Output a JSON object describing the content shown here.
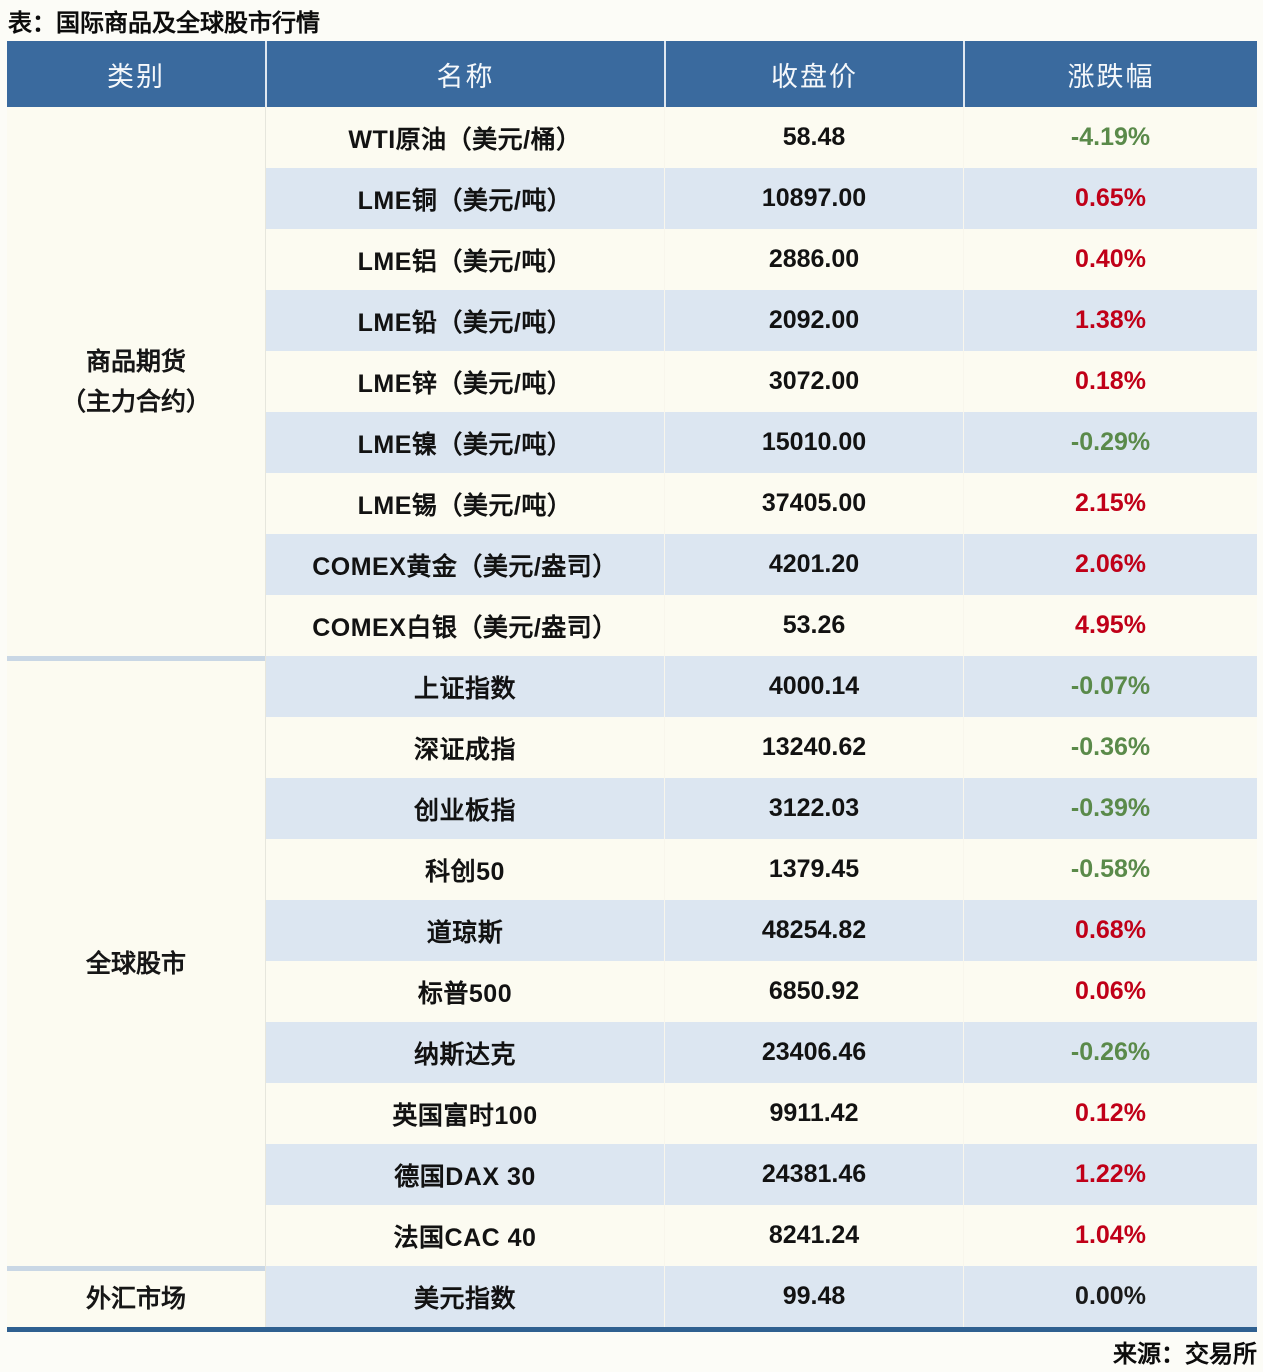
{
  "title": "表：国际商品及全球股市行情",
  "source": "来源：交易所",
  "colors": {
    "up": "#c00018",
    "down": "#5a8a4a",
    "flat": "#1a1a1a",
    "header_bg": "#3a6a9e",
    "stripe_blue": "#dce6f1",
    "stripe_cream": "#fcfbf1",
    "bottom_border": "#2f6090"
  },
  "table": {
    "headers": [
      "类别",
      "名称",
      "收盘价",
      "涨跌幅"
    ],
    "sections": [
      {
        "category_lines": [
          "商品期货",
          "（主力合约）"
        ],
        "rows": [
          {
            "name": "WTI原油（美元/桶）",
            "close": "58.48",
            "change": "-4.19%",
            "direction": "down"
          },
          {
            "name": "LME铜（美元/吨）",
            "close": "10897.00",
            "change": "0.65%",
            "direction": "up"
          },
          {
            "name": "LME铝（美元/吨）",
            "close": "2886.00",
            "change": "0.40%",
            "direction": "up"
          },
          {
            "name": "LME铅（美元/吨）",
            "close": "2092.00",
            "change": "1.38%",
            "direction": "up"
          },
          {
            "name": "LME锌（美元/吨）",
            "close": "3072.00",
            "change": "0.18%",
            "direction": "up"
          },
          {
            "name": "LME镍（美元/吨）",
            "close": "15010.00",
            "change": "-0.29%",
            "direction": "down"
          },
          {
            "name": "LME锡（美元/吨）",
            "close": "37405.00",
            "change": "2.15%",
            "direction": "up"
          },
          {
            "name": "COMEX黄金（美元/盎司）",
            "close": "4201.20",
            "change": "2.06%",
            "direction": "up"
          },
          {
            "name": "COMEX白银（美元/盎司）",
            "close": "53.26",
            "change": "4.95%",
            "direction": "up"
          }
        ]
      },
      {
        "category_lines": [
          "全球股市"
        ],
        "rows": [
          {
            "name": "上证指数",
            "close": "4000.14",
            "change": "-0.07%",
            "direction": "down"
          },
          {
            "name": "深证成指",
            "close": "13240.62",
            "change": "-0.36%",
            "direction": "down"
          },
          {
            "name": "创业板指",
            "close": "3122.03",
            "change": "-0.39%",
            "direction": "down"
          },
          {
            "name": "科创50",
            "close": "1379.45",
            "change": "-0.58%",
            "direction": "down"
          },
          {
            "name": "道琼斯",
            "close": "48254.82",
            "change": "0.68%",
            "direction": "up"
          },
          {
            "name": "标普500",
            "close": "6850.92",
            "change": "0.06%",
            "direction": "up"
          },
          {
            "name": "纳斯达克",
            "close": "23406.46",
            "change": "-0.26%",
            "direction": "down"
          },
          {
            "name": "英国富时100",
            "close": "9911.42",
            "change": "0.12%",
            "direction": "up"
          },
          {
            "name": "德国DAX 30",
            "close": "24381.46",
            "change": "1.22%",
            "direction": "up"
          },
          {
            "name": "法国CAC 40",
            "close": "8241.24",
            "change": "1.04%",
            "direction": "up"
          }
        ]
      },
      {
        "category_lines": [
          "外汇市场"
        ],
        "rows": [
          {
            "name": "美元指数",
            "close": "99.48",
            "change": "0.00%",
            "direction": "flat"
          }
        ]
      }
    ]
  },
  "chart_data": {
    "type": "table",
    "title": "表：国际商品及全球股市行情",
    "columns": [
      "类别",
      "名称",
      "收盘价",
      "涨跌幅"
    ],
    "rows": [
      [
        "商品期货（主力合约）",
        "WTI原油（美元/桶）",
        58.48,
        "-4.19%"
      ],
      [
        "商品期货（主力合约）",
        "LME铜（美元/吨）",
        10897.0,
        "0.65%"
      ],
      [
        "商品期货（主力合约）",
        "LME铝（美元/吨）",
        2886.0,
        "0.40%"
      ],
      [
        "商品期货（主力合约）",
        "LME铅（美元/吨）",
        2092.0,
        "1.38%"
      ],
      [
        "商品期货（主力合约）",
        "LME锌（美元/吨）",
        3072.0,
        "0.18%"
      ],
      [
        "商品期货（主力合约）",
        "LME镍（美元/吨）",
        15010.0,
        "-0.29%"
      ],
      [
        "商品期货（主力合约）",
        "LME锡（美元/吨）",
        37405.0,
        "2.15%"
      ],
      [
        "商品期货（主力合约）",
        "COMEX黄金（美元/盎司）",
        4201.2,
        "2.06%"
      ],
      [
        "商品期货（主力合约）",
        "COMEX白银（美元/盎司）",
        53.26,
        "4.95%"
      ],
      [
        "全球股市",
        "上证指数",
        4000.14,
        "-0.07%"
      ],
      [
        "全球股市",
        "深证成指",
        13240.62,
        "-0.36%"
      ],
      [
        "全球股市",
        "创业板指",
        3122.03,
        "-0.39%"
      ],
      [
        "全球股市",
        "科创50",
        1379.45,
        "-0.58%"
      ],
      [
        "全球股市",
        "道琼斯",
        48254.82,
        "0.68%"
      ],
      [
        "全球股市",
        "标普500",
        6850.92,
        "0.06%"
      ],
      [
        "全球股市",
        "纳斯达克",
        23406.46,
        "-0.26%"
      ],
      [
        "全球股市",
        "英国富时100",
        9911.42,
        "0.12%"
      ],
      [
        "全球股市",
        "德国DAX 30",
        24381.46,
        "1.22%"
      ],
      [
        "全球股市",
        "法国CAC 40",
        8241.24,
        "1.04%"
      ],
      [
        "外汇市场",
        "美元指数",
        99.48,
        "0.00%"
      ]
    ],
    "notes": "涨跌幅颜色：红=上涨，绿=下跌，黑=持平；来源：交易所"
  }
}
